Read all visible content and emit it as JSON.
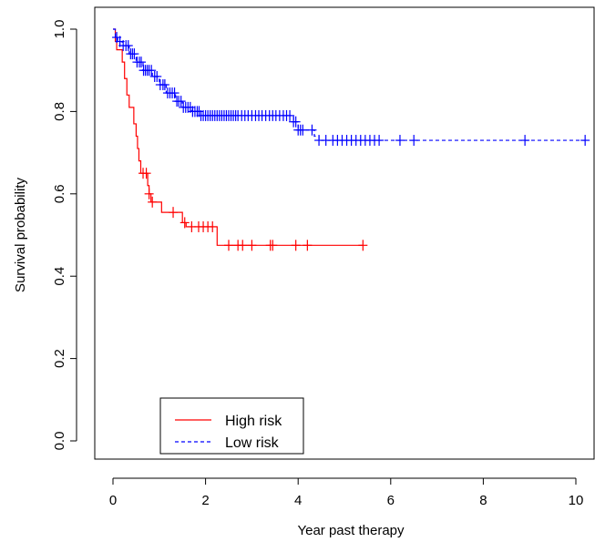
{
  "chart_data": {
    "type": "line",
    "chart_kind": "kaplan-meier survival curve",
    "title": "",
    "xlabel": "Year past therapy",
    "ylabel": "Survival probability",
    "xlim": [
      0,
      10.2
    ],
    "ylim": [
      0,
      1.0
    ],
    "x_ticks": [
      0,
      2,
      4,
      6,
      8,
      10
    ],
    "y_ticks": [
      0.0,
      0.2,
      0.4,
      0.6,
      0.8,
      1.0
    ],
    "x_tick_labels": [
      "0",
      "2",
      "4",
      "6",
      "8",
      "10"
    ],
    "y_tick_labels": [
      "0.0",
      "0.2",
      "0.4",
      "0.6",
      "0.8",
      "1.0"
    ],
    "grid": false,
    "legend_position": "bottom-left",
    "series": [
      {
        "name": "High risk",
        "color": "#ff0000",
        "line_style": "solid",
        "steps": [
          [
            0,
            1.0
          ],
          [
            0.05,
            0.97
          ],
          [
            0.08,
            0.95
          ],
          [
            0.2,
            0.92
          ],
          [
            0.25,
            0.88
          ],
          [
            0.3,
            0.84
          ],
          [
            0.35,
            0.81
          ],
          [
            0.45,
            0.77
          ],
          [
            0.5,
            0.74
          ],
          [
            0.53,
            0.71
          ],
          [
            0.56,
            0.68
          ],
          [
            0.6,
            0.65
          ],
          [
            0.75,
            0.62
          ],
          [
            0.78,
            0.6
          ],
          [
            0.82,
            0.58
          ],
          [
            1.05,
            0.555
          ],
          [
            1.5,
            0.53
          ],
          [
            1.58,
            0.52
          ],
          [
            2.25,
            0.475
          ],
          [
            5.4,
            0.475
          ]
        ],
        "censor_x": [
          0.65,
          0.72,
          0.78,
          0.85,
          1.3,
          1.55,
          1.7,
          1.85,
          1.95,
          2.05,
          2.15,
          2.5,
          2.7,
          2.8,
          3.0,
          3.4,
          3.45,
          3.95,
          4.2,
          5.4
        ]
      },
      {
        "name": "Low risk",
        "color": "#0000ff",
        "line_style": "dashed",
        "steps": [
          [
            0,
            1.0
          ],
          [
            0.05,
            0.98
          ],
          [
            0.1,
            0.97
          ],
          [
            0.2,
            0.96
          ],
          [
            0.35,
            0.94
          ],
          [
            0.5,
            0.92
          ],
          [
            0.65,
            0.9
          ],
          [
            0.85,
            0.885
          ],
          [
            1.0,
            0.865
          ],
          [
            1.15,
            0.845
          ],
          [
            1.35,
            0.825
          ],
          [
            1.5,
            0.81
          ],
          [
            1.7,
            0.8
          ],
          [
            1.9,
            0.79
          ],
          [
            3.9,
            0.775
          ],
          [
            4.0,
            0.755
          ],
          [
            4.35,
            0.74
          ],
          [
            4.45,
            0.73
          ],
          [
            10.2,
            0.73
          ]
        ],
        "censor_x": [
          0.08,
          0.15,
          0.22,
          0.28,
          0.33,
          0.38,
          0.42,
          0.46,
          0.52,
          0.57,
          0.61,
          0.66,
          0.7,
          0.74,
          0.78,
          0.83,
          0.9,
          0.95,
          1.02,
          1.08,
          1.12,
          1.18,
          1.23,
          1.28,
          1.33,
          1.38,
          1.42,
          1.47,
          1.52,
          1.57,
          1.62,
          1.67,
          1.72,
          1.77,
          1.82,
          1.86,
          1.9,
          1.95,
          2.0,
          2.05,
          2.1,
          2.15,
          2.2,
          2.25,
          2.3,
          2.35,
          2.4,
          2.45,
          2.5,
          2.55,
          2.6,
          2.65,
          2.7,
          2.78,
          2.85,
          2.92,
          3.0,
          3.08,
          3.15,
          3.22,
          3.3,
          3.38,
          3.45,
          3.52,
          3.6,
          3.68,
          3.75,
          3.82,
          3.9,
          3.95,
          4.0,
          4.05,
          4.1,
          4.3,
          4.45,
          4.6,
          4.75,
          4.85,
          4.95,
          5.05,
          5.15,
          5.25,
          5.35,
          5.45,
          5.55,
          5.65,
          5.75,
          6.2,
          6.5,
          8.9,
          10.2
        ]
      }
    ]
  }
}
